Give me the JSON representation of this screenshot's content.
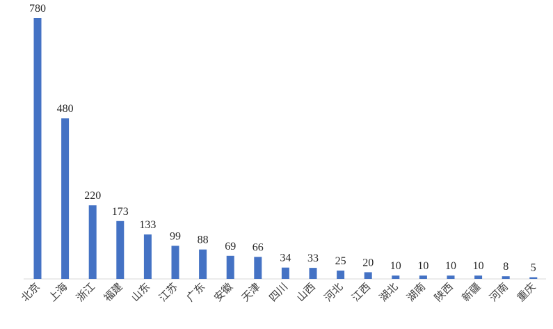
{
  "chart_data": {
    "type": "bar",
    "title": "",
    "xlabel": "",
    "ylabel": "",
    "ylim": [
      0,
      800
    ],
    "grid": false,
    "legend": "none",
    "bar_color": "#4472c4",
    "categories": [
      "北京",
      "上海",
      "浙江",
      "福建",
      "山东",
      "江苏",
      "广东",
      "安徽",
      "天津",
      "四川",
      "山西",
      "河北",
      "江西",
      "湖北",
      "湖南",
      "陕西",
      "新疆",
      "河南",
      "重庆"
    ],
    "values": [
      780,
      480,
      220,
      173,
      133,
      99,
      88,
      69,
      66,
      34,
      33,
      25,
      20,
      10,
      10,
      10,
      10,
      8,
      5
    ],
    "data_labels": [
      "780",
      "480",
      "220",
      "173",
      "133",
      "99",
      "88",
      "69",
      "66",
      "34",
      "33",
      "25",
      "20",
      "10",
      "10",
      "10",
      "10",
      "8",
      "5"
    ]
  }
}
